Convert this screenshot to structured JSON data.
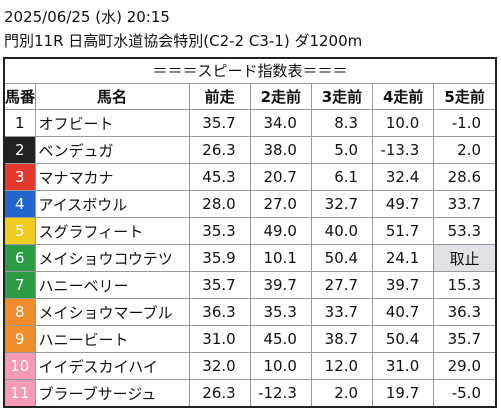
{
  "header": {
    "datetime": "2025/06/25 (水) 20:15",
    "race": "門別11R 日高町水道協会特別(C2-2 C3-1) ダ1200m"
  },
  "table": {
    "title": "＝＝＝スピード指数表＝＝＝",
    "columns": [
      "馬番",
      "馬名",
      "前走",
      "2走前",
      "3走前",
      "4走前",
      "5走前"
    ],
    "rows": [
      [
        "1",
        "オフビート",
        "35.7",
        "34.0",
        "8.3",
        "10.0",
        "-1.0"
      ],
      [
        "2",
        "ベンデュガ",
        "26.3",
        "38.0",
        "5.0",
        "-13.3",
        "2.0"
      ],
      [
        "3",
        "マナマカナ",
        "45.3",
        "20.7",
        "6.1",
        "32.4",
        "28.6"
      ],
      [
        "4",
        "アイスボウル",
        "28.0",
        "27.0",
        "32.7",
        "49.7",
        "33.7"
      ],
      [
        "5",
        "スグラフィート",
        "35.3",
        "49.0",
        "40.0",
        "51.7",
        "53.3"
      ],
      [
        "6",
        "メイショウコウテツ",
        "35.9",
        "10.1",
        "50.4",
        "24.1",
        "取止"
      ],
      [
        "7",
        "ハニーベリー",
        "35.7",
        "39.7",
        "27.7",
        "39.7",
        "15.3"
      ],
      [
        "8",
        "メイショウマーブル",
        "36.3",
        "35.3",
        "33.7",
        "40.7",
        "36.3"
      ],
      [
        "9",
        "ハニービート",
        "31.0",
        "45.0",
        "38.7",
        "50.4",
        "35.7"
      ],
      [
        "10",
        "イイデスカイハイ",
        "32.0",
        "10.0",
        "12.0",
        "31.0",
        "29.0"
      ],
      [
        "11",
        "ブラーブサージュ",
        "26.3",
        "-12.3",
        "2.0",
        "19.7",
        "-5.0"
      ]
    ]
  }
}
